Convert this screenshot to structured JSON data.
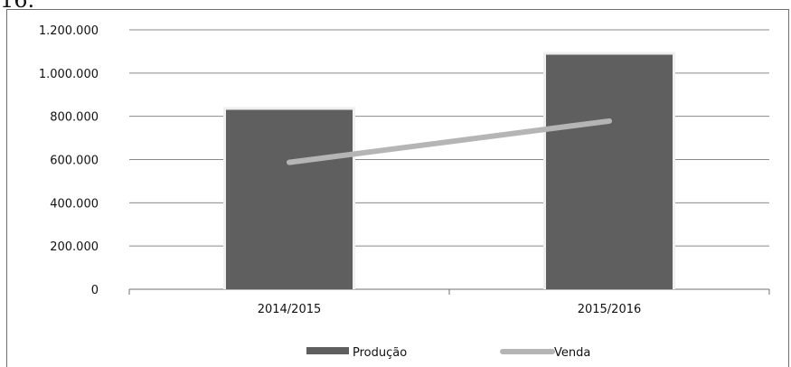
{
  "page": {
    "cut_text": "16."
  },
  "chart_data": {
    "type": "bar",
    "categories": [
      "2014/2015",
      "2015/2016"
    ],
    "series": [
      {
        "name": "Produção",
        "type": "bar",
        "values": [
          830000,
          1085000
        ],
        "color": "#5f5f5f"
      },
      {
        "name": "Venda",
        "type": "line",
        "values": [
          587000,
          778000
        ],
        "color": "#b5b5b5"
      }
    ],
    "ylim": [
      0,
      1200000
    ],
    "y_ticks": [
      {
        "value": 0,
        "label": "0"
      },
      {
        "value": 200000,
        "label": "200.000"
      },
      {
        "value": 400000,
        "label": "400.000"
      },
      {
        "value": 600000,
        "label": "600.000"
      },
      {
        "value": 800000,
        "label": "800.000"
      },
      {
        "value": 1000000,
        "label": "1.000.000"
      },
      {
        "value": 1200000,
        "label": "1.200.000"
      }
    ],
    "grid": true,
    "legend_position": "bottom"
  }
}
